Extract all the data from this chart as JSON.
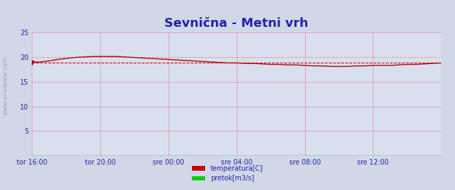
{
  "title": "Sevnična - Metni vrh",
  "title_color": "#2222aa",
  "title_fontsize": 13,
  "bg_color": "#d0d8e8",
  "plot_bg_color": "#d8e0f0",
  "grid_color": "#ff6666",
  "axis_color": "#2222aa",
  "tick_color": "#2222aa",
  "tick_label_color": "#2222aa",
  "watermark": "www.si-vreme.com",
  "ylabel_left": "",
  "xlabel": "",
  "xlim_hours": [
    0,
    24
  ],
  "ylim": [
    0,
    25
  ],
  "yticks": [
    0,
    5,
    10,
    15,
    20,
    25
  ],
  "x_tick_labels": [
    "tor 16:00",
    "tor 20:00",
    "sre 00:00",
    "sre 04:00",
    "sre 08:00",
    "sre 12:00"
  ],
  "x_tick_positions": [
    0,
    4,
    8,
    12,
    16,
    20
  ],
  "temp_color": "#aa0000",
  "flow_color": "#008800",
  "avg_color": "#dd0000",
  "avg_value": 18.9,
  "legend_labels": [
    "temperatura[C]",
    "pretok[m3/s]"
  ],
  "legend_colors": [
    "#cc0000",
    "#00cc00"
  ],
  "temp_data_x": [
    0.0,
    0.5,
    1.0,
    1.5,
    2.0,
    2.5,
    3.0,
    3.5,
    4.0,
    4.5,
    5.0,
    5.5,
    6.0,
    6.5,
    7.0,
    7.5,
    8.0,
    8.5,
    9.0,
    9.5,
    10.0,
    10.5,
    11.0,
    11.5,
    12.0,
    12.5,
    13.0,
    13.5,
    14.0,
    14.5,
    15.0,
    15.5,
    16.0,
    16.5,
    17.0,
    17.5,
    18.0,
    18.5,
    19.0,
    19.5,
    20.0,
    20.5,
    21.0,
    21.5,
    22.0,
    22.5,
    23.0,
    23.5,
    24.0
  ],
  "temp_data_y": [
    18.9,
    19.0,
    19.2,
    19.5,
    19.7,
    19.9,
    20.0,
    20.1,
    20.1,
    20.1,
    20.1,
    20.0,
    19.9,
    19.8,
    19.7,
    19.6,
    19.5,
    19.4,
    19.3,
    19.2,
    19.1,
    19.0,
    18.9,
    18.8,
    18.8,
    18.7,
    18.7,
    18.6,
    18.5,
    18.5,
    18.4,
    18.4,
    18.3,
    18.2,
    18.2,
    18.1,
    18.1,
    18.1,
    18.2,
    18.2,
    18.3,
    18.3,
    18.3,
    18.4,
    18.5,
    18.5,
    18.6,
    18.7,
    18.8
  ],
  "flow_data_y": [
    0.05,
    0.05,
    0.05,
    0.05,
    0.05,
    0.05,
    0.05,
    0.05,
    0.05,
    0.05,
    0.05,
    0.05,
    0.05,
    0.05,
    0.05,
    0.05,
    0.05,
    0.05,
    0.05,
    0.05,
    0.05,
    0.05,
    0.05,
    0.05,
    0.05,
    0.05,
    0.05,
    0.05,
    0.05,
    0.05,
    0.05,
    0.05,
    0.05,
    0.05,
    0.05,
    0.05,
    0.05,
    0.05,
    0.05,
    0.05,
    0.05,
    0.05,
    0.05,
    0.05,
    0.05,
    0.05,
    0.05,
    0.05,
    0.05
  ]
}
